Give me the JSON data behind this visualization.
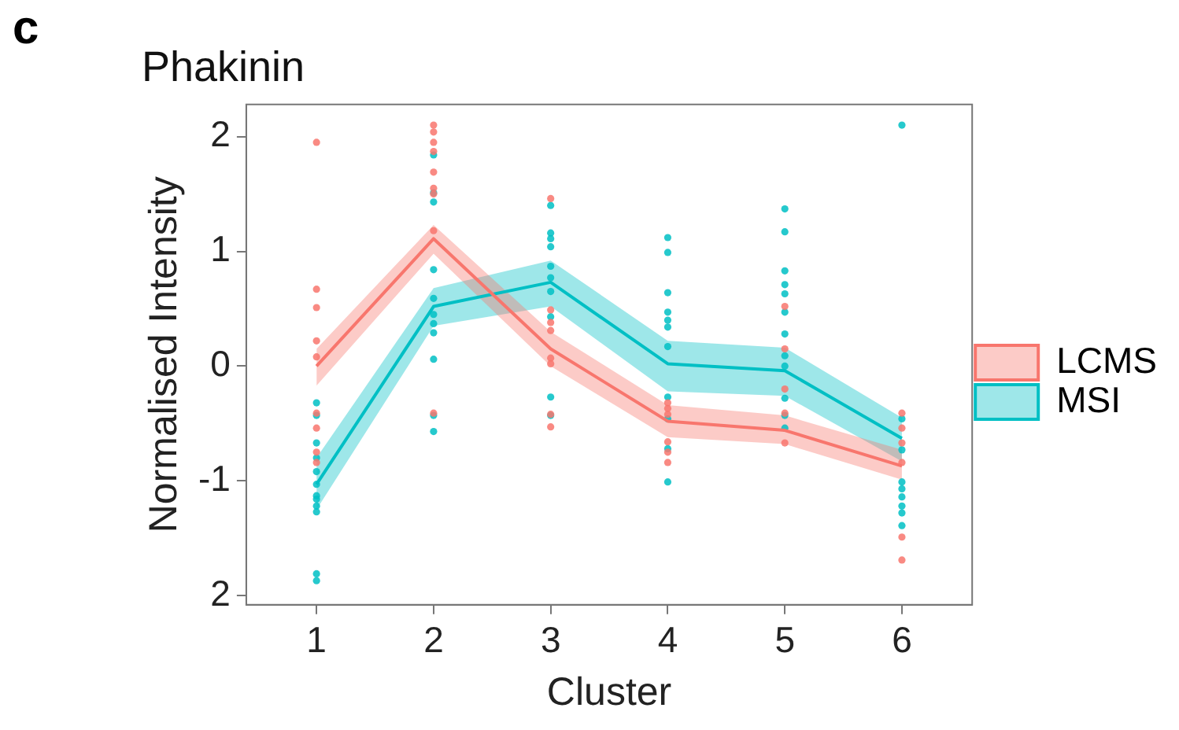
{
  "chart_data": {
    "type": "line",
    "title": "Phakinin",
    "xlabel": "Cluster",
    "ylabel": "Normalised Intensity",
    "annotations": [
      "c"
    ],
    "xlim": [
      0.4,
      6.6
    ],
    "xticks": [
      1,
      2,
      3,
      4,
      5,
      6
    ],
    "ylim": [
      -2.08,
      2.28
    ],
    "yticks": [
      2,
      1,
      0,
      -1,
      {
        "value": -2,
        "label": "2"
      }
    ],
    "grid": false,
    "legend": "right",
    "series": [
      {
        "type": "scatter",
        "marker": "circle",
        "color": "#f8766d",
        "x": [
          1,
          1,
          1,
          1,
          1,
          1,
          1,
          1,
          1,
          2,
          2,
          2,
          2,
          2,
          2,
          2,
          2,
          2,
          3,
          3,
          3,
          3,
          3,
          3,
          3,
          3,
          4,
          4,
          4,
          4,
          4,
          4,
          5,
          5,
          5,
          5,
          5,
          6,
          6,
          6,
          6,
          6,
          6
        ],
        "values": [
          1.95,
          0.67,
          0.51,
          0.22,
          0.08,
          -0.41,
          -0.54,
          -0.75,
          -0.84,
          2.1,
          2.04,
          1.95,
          1.87,
          1.69,
          1.55,
          1.5,
          1.18,
          -0.41,
          1.46,
          0.49,
          0.38,
          0.31,
          0.07,
          0.02,
          -0.42,
          -0.53,
          -0.32,
          -0.37,
          -0.42,
          -0.66,
          -0.75,
          -0.84,
          0.52,
          0.15,
          -0.2,
          -0.41,
          -0.67,
          -0.41,
          -0.54,
          -0.67,
          -0.84,
          -1.49,
          -1.69
        ]
      },
      {
        "type": "scatter",
        "marker": "circle",
        "color": "#00bfc4",
        "x": [
          1,
          1,
          1,
          1,
          1,
          1,
          1,
          1,
          1,
          1,
          1,
          1,
          2,
          2,
          2,
          2,
          2,
          2,
          2,
          2,
          2,
          2,
          2,
          3,
          3,
          3,
          3,
          3,
          3,
          3,
          3,
          3,
          3,
          4,
          4,
          4,
          4,
          4,
          4,
          4,
          4,
          4,
          4,
          4,
          5,
          5,
          5,
          5,
          5,
          5,
          5,
          5,
          5,
          5,
          5,
          5,
          6,
          6,
          6,
          6,
          6,
          6,
          6,
          6,
          6
        ],
        "values": [
          -0.32,
          -0.43,
          -0.67,
          -0.8,
          -0.92,
          -1.03,
          -1.13,
          -1.16,
          -1.22,
          -1.27,
          -1.81,
          -1.87,
          1.84,
          1.51,
          1.43,
          0.84,
          0.59,
          0.45,
          0.37,
          0.29,
          0.06,
          -0.43,
          -0.57,
          1.4,
          1.16,
          1.11,
          1.04,
          0.87,
          0.77,
          0.65,
          0.43,
          -0.27,
          -0.43,
          1.12,
          0.99,
          0.64,
          0.47,
          0.4,
          0.34,
          0.17,
          -0.27,
          -0.46,
          -0.72,
          -1.01,
          1.37,
          1.17,
          0.83,
          0.71,
          0.63,
          0.47,
          0.28,
          0.09,
          0.0,
          -0.28,
          -0.43,
          -0.54,
          2.1,
          -0.46,
          -0.73,
          -1.01,
          -1.07,
          -1.14,
          -1.22,
          -1.28,
          -1.39
        ]
      },
      {
        "name": "LCMS",
        "color": "#f8766d",
        "x": [
          1,
          2,
          3,
          4,
          5,
          6
        ],
        "values": [
          0.0,
          1.11,
          0.15,
          -0.48,
          -0.56,
          -0.87
        ],
        "lower": [
          -0.17,
          0.98,
          0.0,
          -0.62,
          -0.68,
          -0.99
        ],
        "upper": [
          0.15,
          1.23,
          0.3,
          -0.34,
          -0.43,
          -0.73
        ]
      },
      {
        "name": "MSI",
        "color": "#00bfc4",
        "x": [
          1,
          2,
          3,
          4,
          5,
          6
        ],
        "values": [
          -1.03,
          0.52,
          0.73,
          0.02,
          -0.04,
          -0.63
        ],
        "lower": [
          -1.25,
          0.35,
          0.52,
          -0.22,
          -0.26,
          -0.83
        ],
        "upper": [
          -0.8,
          0.68,
          0.92,
          0.22,
          0.16,
          -0.45
        ]
      }
    ]
  }
}
